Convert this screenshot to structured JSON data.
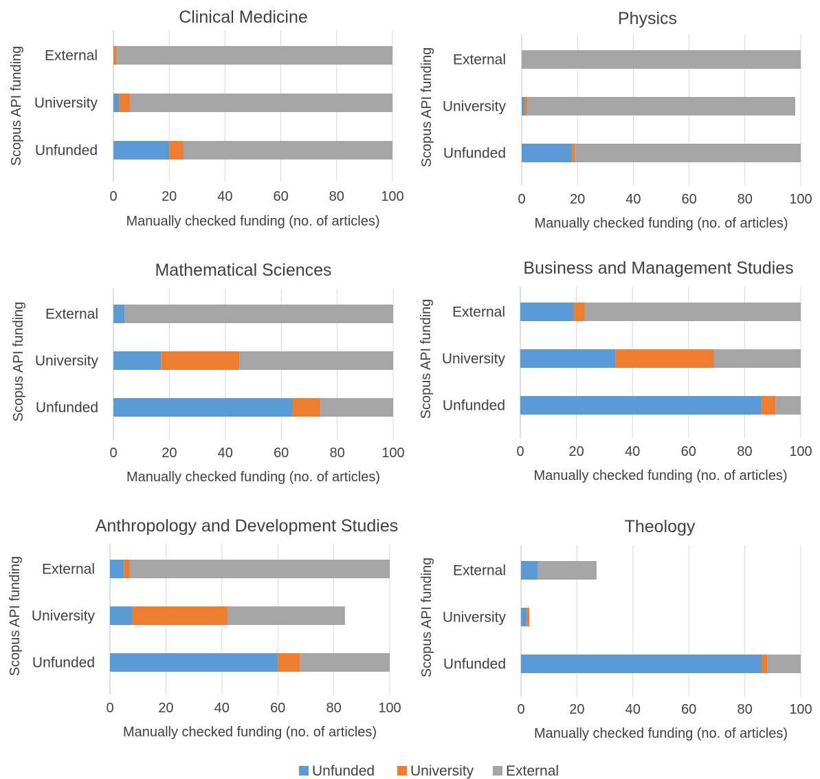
{
  "legend": [
    {
      "label": "Unfunded",
      "color": "#5b9bd5"
    },
    {
      "label": "University",
      "color": "#ed7d31"
    },
    {
      "label": "External",
      "color": "#a5a5a5"
    }
  ],
  "chart_data": [
    {
      "type": "bar",
      "orientation": "horizontal",
      "stacked": true,
      "title": "Clinical Medicine",
      "xlabel": "Manually checked funding (no. of articles)",
      "ylabel": "Scopus API funding",
      "xlim": [
        0,
        100
      ],
      "xticks": [
        "0",
        "20",
        "40",
        "60",
        "80",
        "100"
      ],
      "grid": true,
      "categories": [
        "External",
        "University",
        "Unfunded"
      ],
      "series": [
        {
          "name": "Unfunded",
          "values": [
            0,
            2,
            20
          ]
        },
        {
          "name": "University",
          "values": [
            1,
            4,
            5
          ]
        },
        {
          "name": "External",
          "values": [
            99,
            94,
            75
          ]
        }
      ]
    },
    {
      "type": "bar",
      "orientation": "horizontal",
      "stacked": true,
      "title": "Physics",
      "xlabel": "Manually checked funding (no. of articles)",
      "ylabel": "Scopus API funding",
      "xlim": [
        0,
        100
      ],
      "xticks": [
        "0",
        "20",
        "40",
        "60",
        "80",
        "100"
      ],
      "grid": true,
      "categories": [
        "External",
        "University",
        "Unfunded"
      ],
      "series": [
        {
          "name": "Unfunded",
          "values": [
            0,
            1,
            18
          ]
        },
        {
          "name": "University",
          "values": [
            0,
            1,
            1
          ]
        },
        {
          "name": "External",
          "values": [
            100,
            96,
            81
          ]
        }
      ]
    },
    {
      "type": "bar",
      "orientation": "horizontal",
      "stacked": true,
      "title": "Mathematical Sciences",
      "xlabel": "Manually checked funding (no. of articles)",
      "ylabel": "Scopus API funding",
      "xlim": [
        0,
        100
      ],
      "xticks": [
        "0",
        "20",
        "40",
        "60",
        "80",
        "100"
      ],
      "grid": true,
      "categories": [
        "External",
        "University",
        "Unfunded"
      ],
      "series": [
        {
          "name": "Unfunded",
          "values": [
            4,
            17,
            64
          ]
        },
        {
          "name": "University",
          "values": [
            0,
            28,
            10
          ]
        },
        {
          "name": "External",
          "values": [
            96,
            55,
            26
          ]
        }
      ]
    },
    {
      "type": "bar",
      "orientation": "horizontal",
      "stacked": true,
      "title": "Business and Management Studies",
      "xlabel": "Manually checked funding (no. of articles)",
      "ylabel": "Scopus API funding",
      "xlim": [
        0,
        100
      ],
      "xticks": [
        "0",
        "20",
        "40",
        "60",
        "80",
        "100"
      ],
      "grid": true,
      "categories": [
        "External",
        "University",
        "Unfunded"
      ],
      "series": [
        {
          "name": "Unfunded",
          "values": [
            19,
            34,
            86
          ]
        },
        {
          "name": "University",
          "values": [
            4,
            35,
            5
          ]
        },
        {
          "name": "External",
          "values": [
            77,
            31,
            9
          ]
        }
      ]
    },
    {
      "type": "bar",
      "orientation": "horizontal",
      "stacked": true,
      "title": "Anthropology and Development Studies",
      "xlabel": "Manually checked funding (no. of articles)",
      "ylabel": "Scopus API funding",
      "xlim": [
        0,
        100
      ],
      "xticks": [
        "0",
        "20",
        "40",
        "60",
        "80",
        "100"
      ],
      "grid": true,
      "categories": [
        "External",
        "University",
        "Unfunded"
      ],
      "series": [
        {
          "name": "Unfunded",
          "values": [
            5,
            8,
            60
          ]
        },
        {
          "name": "University",
          "values": [
            2,
            34,
            8
          ]
        },
        {
          "name": "External",
          "values": [
            93,
            42,
            32
          ]
        }
      ]
    },
    {
      "type": "bar",
      "orientation": "horizontal",
      "stacked": true,
      "title": "Theology",
      "xlabel": "Manually checked funding (no. of articles)",
      "ylabel": "Scopus API funding",
      "xlim": [
        0,
        100
      ],
      "xticks": [
        "0",
        "20",
        "40",
        "60",
        "80",
        "100"
      ],
      "grid": true,
      "categories": [
        "External",
        "University",
        "Unfunded"
      ],
      "series": [
        {
          "name": "Unfunded",
          "values": [
            6,
            2,
            86
          ]
        },
        {
          "name": "University",
          "values": [
            0,
            1,
            2
          ]
        },
        {
          "name": "External",
          "values": [
            21,
            0,
            12
          ]
        }
      ]
    }
  ]
}
